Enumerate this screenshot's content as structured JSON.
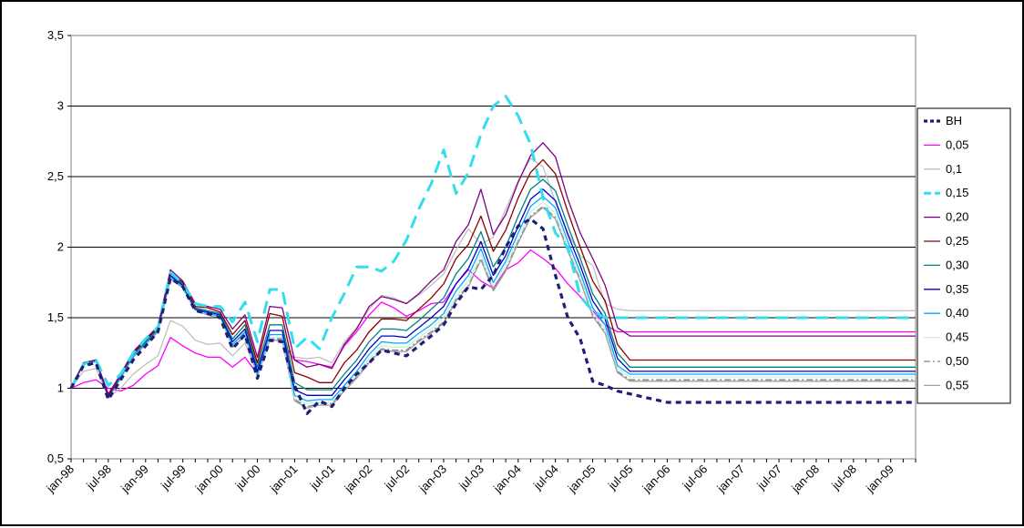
{
  "chart_data": {
    "type": "line",
    "title": "",
    "xlabel": "",
    "ylabel": "",
    "ylim": [
      0.5,
      3.5
    ],
    "yticks": [
      "0,5",
      "1",
      "1,5",
      "2",
      "2,5",
      "3",
      "3,5"
    ],
    "ytick_values": [
      0.5,
      1,
      1.5,
      2,
      2.5,
      3,
      3.5
    ],
    "grid": "horizontal",
    "legend_position": "right",
    "x_tick_labels": [
      "jan-98",
      "jul-98",
      "jan-99",
      "jul-99",
      "jan-00",
      "jul-00",
      "jan-01",
      "jul-01",
      "jan-02",
      "jul-02",
      "jan-03",
      "jul-03",
      "jan-04",
      "jul-04",
      "jan-05",
      "jul-05",
      "jan-06",
      "jul-06",
      "jan-07",
      "jul-07",
      "jan-08",
      "jul-08",
      "jan-09"
    ],
    "x": [
      "jan-98",
      "mar-98",
      "may-98",
      "jul-98",
      "sep-98",
      "nov-98",
      "jan-99",
      "mar-99",
      "may-99",
      "jul-99",
      "sep-99",
      "nov-99",
      "jan-00",
      "mar-00",
      "may-00",
      "jul-00",
      "sep-00",
      "nov-00",
      "jan-01",
      "mar-01",
      "may-01",
      "jul-01",
      "sep-01",
      "nov-01",
      "jan-02",
      "mar-02",
      "may-02",
      "jul-02",
      "sep-02",
      "nov-02",
      "jan-03",
      "mar-03",
      "may-03",
      "jul-03",
      "sep-03",
      "nov-03",
      "jan-04",
      "mar-04",
      "may-04",
      "jul-04",
      "sep-04",
      "nov-04",
      "jan-05",
      "mar-05",
      "may-05",
      "jul-05",
      "sep-05",
      "nov-05",
      "jan-06",
      "mar-06",
      "may-06",
      "jul-06",
      "sep-06",
      "nov-06",
      "jan-07",
      "mar-07",
      "may-07",
      "jul-07",
      "sep-07",
      "nov-07",
      "jan-08",
      "mar-08",
      "may-08",
      "jul-08",
      "sep-08",
      "nov-08",
      "jan-09",
      "mar-09",
      "may-09"
    ],
    "series": [
      {
        "name": "BH",
        "color": "#1f1f7a",
        "dash": "6,5",
        "width": 3.2,
        "values": [
          1.0,
          1.16,
          1.18,
          0.92,
          1.06,
          1.2,
          1.3,
          1.4,
          1.78,
          1.72,
          1.55,
          1.53,
          1.5,
          1.28,
          1.38,
          1.07,
          1.34,
          1.33,
          1.02,
          0.82,
          0.91,
          0.87,
          1.0,
          1.1,
          1.18,
          1.27,
          1.25,
          1.23,
          1.3,
          1.37,
          1.45,
          1.6,
          1.72,
          1.7,
          1.8,
          2.0,
          2.15,
          2.2,
          2.13,
          1.8,
          1.5,
          1.35,
          1.05,
          1.02,
          0.98,
          0.96,
          0.94,
          0.92,
          0.9,
          0.9,
          0.9,
          0.9,
          0.9,
          0.9,
          0.9,
          0.9,
          0.9,
          0.9,
          0.9,
          0.9,
          0.9,
          0.9,
          0.9,
          0.9,
          0.9,
          0.9,
          0.9,
          0.9,
          0.9
        ]
      },
      {
        "name": "0,05",
        "color": "#ff00ff",
        "dash": "",
        "width": 1.3,
        "values": [
          1.0,
          1.04,
          1.06,
          1.0,
          0.98,
          1.02,
          1.1,
          1.16,
          1.36,
          1.3,
          1.25,
          1.22,
          1.22,
          1.15,
          1.22,
          1.1,
          1.35,
          1.33,
          1.2,
          1.19,
          1.17,
          1.15,
          1.3,
          1.4,
          1.52,
          1.61,
          1.57,
          1.51,
          1.55,
          1.6,
          1.61,
          1.74,
          1.84,
          1.76,
          1.71,
          1.84,
          1.89,
          1.98,
          1.92,
          1.85,
          1.74,
          1.65,
          1.55,
          1.45,
          1.4,
          1.4,
          1.4,
          1.4,
          1.4,
          1.4,
          1.4,
          1.4,
          1.4,
          1.4,
          1.4,
          1.4,
          1.4,
          1.4,
          1.4,
          1.4,
          1.4,
          1.4,
          1.4,
          1.4,
          1.4,
          1.4,
          1.4,
          1.4,
          1.4
        ]
      },
      {
        "name": "0,1",
        "color": "#c0c0c0",
        "dash": "",
        "width": 1.3,
        "values": [
          1.0,
          1.12,
          1.14,
          0.94,
          1.0,
          1.1,
          1.17,
          1.23,
          1.48,
          1.44,
          1.34,
          1.31,
          1.32,
          1.23,
          1.32,
          1.11,
          1.36,
          1.36,
          1.22,
          1.21,
          1.22,
          1.18,
          1.33,
          1.43,
          1.56,
          1.66,
          1.64,
          1.6,
          1.66,
          1.73,
          1.81,
          1.98,
          2.13,
          2.02,
          2.07,
          2.27,
          2.47,
          2.63,
          2.57,
          2.32,
          2.1,
          1.94,
          1.87,
          1.6,
          1.56,
          1.55,
          1.55,
          1.55,
          1.55,
          1.55,
          1.55,
          1.55,
          1.55,
          1.55,
          1.55,
          1.55,
          1.55,
          1.55,
          1.55,
          1.55,
          1.55,
          1.55,
          1.55,
          1.55,
          1.55,
          1.55,
          1.55,
          1.55,
          1.55
        ]
      },
      {
        "name": "0,15",
        "color": "#33ddee",
        "dash": "14,8",
        "width": 3,
        "values": [
          1.0,
          1.17,
          1.2,
          1.02,
          1.1,
          1.25,
          1.35,
          1.43,
          1.82,
          1.74,
          1.6,
          1.58,
          1.58,
          1.47,
          1.61,
          1.33,
          1.7,
          1.7,
          1.28,
          1.36,
          1.28,
          1.5,
          1.67,
          1.86,
          1.86,
          1.83,
          1.9,
          2.05,
          2.27,
          2.45,
          2.69,
          2.38,
          2.53,
          2.8,
          3.0,
          3.07,
          2.93,
          2.73,
          2.35,
          2.1,
          2.0,
          1.65,
          1.55,
          1.5,
          1.5,
          1.5,
          1.5,
          1.5,
          1.5,
          1.5,
          1.5,
          1.5,
          1.5,
          1.5,
          1.5,
          1.5,
          1.5,
          1.5,
          1.5,
          1.5,
          1.5,
          1.5,
          1.5,
          1.5,
          1.5,
          1.5,
          1.5,
          1.5,
          1.5
        ]
      },
      {
        "name": "0,20",
        "color": "#800080",
        "dash": "",
        "width": 1.3,
        "values": [
          1.0,
          1.18,
          1.2,
          0.96,
          1.1,
          1.26,
          1.35,
          1.44,
          1.84,
          1.76,
          1.6,
          1.58,
          1.56,
          1.42,
          1.52,
          1.22,
          1.58,
          1.57,
          1.2,
          1.15,
          1.17,
          1.14,
          1.31,
          1.42,
          1.58,
          1.65,
          1.63,
          1.6,
          1.67,
          1.76,
          1.84,
          2.04,
          2.16,
          2.41,
          2.09,
          2.23,
          2.46,
          2.65,
          2.74,
          2.64,
          2.34,
          2.1,
          1.92,
          1.73,
          1.43,
          1.37,
          1.37,
          1.37,
          1.37,
          1.37,
          1.37,
          1.37,
          1.37,
          1.37,
          1.37,
          1.37,
          1.37,
          1.37,
          1.37,
          1.37,
          1.37,
          1.37,
          1.37,
          1.37,
          1.37,
          1.37,
          1.37,
          1.37,
          1.37
        ]
      },
      {
        "name": "0,25",
        "color": "#8b0000",
        "dash": "",
        "width": 1.3,
        "values": [
          1.0,
          1.18,
          1.2,
          0.95,
          1.1,
          1.25,
          1.34,
          1.43,
          1.82,
          1.75,
          1.58,
          1.57,
          1.54,
          1.38,
          1.48,
          1.18,
          1.53,
          1.51,
          1.11,
          1.08,
          1.04,
          1.04,
          1.18,
          1.27,
          1.4,
          1.49,
          1.49,
          1.48,
          1.56,
          1.64,
          1.74,
          1.92,
          2.02,
          2.22,
          1.97,
          2.12,
          2.35,
          2.53,
          2.62,
          2.52,
          2.25,
          2.0,
          1.76,
          1.62,
          1.31,
          1.2,
          1.2,
          1.2,
          1.2,
          1.2,
          1.2,
          1.2,
          1.2,
          1.2,
          1.2,
          1.2,
          1.2,
          1.2,
          1.2,
          1.2,
          1.2,
          1.2,
          1.2,
          1.2,
          1.2,
          1.2,
          1.2,
          1.2,
          1.2
        ]
      },
      {
        "name": "0,30",
        "color": "#008080",
        "dash": "",
        "width": 1.3,
        "values": [
          1.0,
          1.18,
          1.2,
          0.95,
          1.09,
          1.24,
          1.33,
          1.42,
          1.81,
          1.74,
          1.57,
          1.55,
          1.53,
          1.35,
          1.45,
          1.15,
          1.45,
          1.45,
          1.04,
          0.99,
          0.99,
          0.99,
          1.1,
          1.2,
          1.33,
          1.42,
          1.42,
          1.41,
          1.48,
          1.56,
          1.64,
          1.81,
          1.92,
          2.11,
          1.86,
          2.0,
          2.22,
          2.41,
          2.48,
          2.4,
          2.15,
          1.92,
          1.67,
          1.53,
          1.25,
          1.15,
          1.15,
          1.15,
          1.15,
          1.15,
          1.15,
          1.15,
          1.15,
          1.15,
          1.15,
          1.15,
          1.15,
          1.15,
          1.15,
          1.15,
          1.15,
          1.15,
          1.15,
          1.15,
          1.15,
          1.15,
          1.15,
          1.15,
          1.15
        ]
      },
      {
        "name": "0,35",
        "color": "#0000cc",
        "dash": "",
        "width": 1.3,
        "values": [
          1.0,
          1.18,
          1.2,
          0.94,
          1.09,
          1.24,
          1.33,
          1.42,
          1.8,
          1.73,
          1.56,
          1.54,
          1.52,
          1.33,
          1.42,
          1.12,
          1.41,
          1.41,
          0.99,
          0.95,
          0.95,
          0.95,
          1.06,
          1.16,
          1.28,
          1.37,
          1.37,
          1.36,
          1.43,
          1.5,
          1.58,
          1.74,
          1.85,
          2.04,
          1.8,
          1.94,
          2.15,
          2.34,
          2.41,
          2.33,
          2.09,
          1.87,
          1.62,
          1.49,
          1.21,
          1.12,
          1.12,
          1.12,
          1.12,
          1.12,
          1.12,
          1.12,
          1.12,
          1.12,
          1.12,
          1.12,
          1.12,
          1.12,
          1.12,
          1.12,
          1.12,
          1.12,
          1.12,
          1.12,
          1.12,
          1.12,
          1.12,
          1.12,
          1.12
        ]
      },
      {
        "name": "0,40",
        "color": "#00aaff",
        "dash": "",
        "width": 1.3,
        "values": [
          1.0,
          1.17,
          1.19,
          0.94,
          1.08,
          1.23,
          1.32,
          1.41,
          1.79,
          1.72,
          1.56,
          1.53,
          1.51,
          1.31,
          1.4,
          1.1,
          1.38,
          1.38,
          0.95,
          0.91,
          0.92,
          0.92,
          1.02,
          1.12,
          1.24,
          1.33,
          1.32,
          1.32,
          1.39,
          1.45,
          1.53,
          1.69,
          1.8,
          1.99,
          1.75,
          1.9,
          2.1,
          2.29,
          2.36,
          2.28,
          2.04,
          1.82,
          1.57,
          1.45,
          1.16,
          1.1,
          1.1,
          1.1,
          1.1,
          1.1,
          1.1,
          1.1,
          1.1,
          1.1,
          1.1,
          1.1,
          1.1,
          1.1,
          1.1,
          1.1,
          1.1,
          1.1,
          1.1,
          1.1,
          1.1,
          1.1,
          1.1,
          1.1,
          1.1
        ]
      },
      {
        "name": "0,45",
        "color": "#c8f0e0",
        "dash": "",
        "width": 1.3,
        "values": [
          1.0,
          1.17,
          1.19,
          0.94,
          1.08,
          1.23,
          1.32,
          1.41,
          1.79,
          1.72,
          1.55,
          1.53,
          1.5,
          1.3,
          1.39,
          1.09,
          1.36,
          1.36,
          0.93,
          0.89,
          0.9,
          0.9,
          1.0,
          1.1,
          1.21,
          1.3,
          1.29,
          1.29,
          1.36,
          1.42,
          1.5,
          1.65,
          1.76,
          1.95,
          1.72,
          1.87,
          2.06,
          2.25,
          2.32,
          2.24,
          2.0,
          1.79,
          1.54,
          1.42,
          1.14,
          1.08,
          1.08,
          1.08,
          1.08,
          1.08,
          1.08,
          1.08,
          1.08,
          1.08,
          1.08,
          1.08,
          1.08,
          1.08,
          1.08,
          1.08,
          1.08,
          1.08,
          1.08,
          1.08,
          1.08,
          1.08,
          1.08,
          1.08,
          1.08
        ]
      },
      {
        "name": "0,50",
        "color": "#808080",
        "dash": "7,3,2,3",
        "width": 1.3,
        "values": [
          1.0,
          1.17,
          1.19,
          0.93,
          1.07,
          1.22,
          1.31,
          1.4,
          1.78,
          1.71,
          1.55,
          1.52,
          1.5,
          1.3,
          1.38,
          1.08,
          1.35,
          1.35,
          0.92,
          0.87,
          0.89,
          0.89,
          0.99,
          1.08,
          1.19,
          1.28,
          1.27,
          1.27,
          1.34,
          1.4,
          1.47,
          1.63,
          1.73,
          1.92,
          1.7,
          1.84,
          2.04,
          2.22,
          2.29,
          2.21,
          1.98,
          1.77,
          1.52,
          1.4,
          1.12,
          1.06,
          1.06,
          1.06,
          1.06,
          1.06,
          1.06,
          1.06,
          1.06,
          1.06,
          1.06,
          1.06,
          1.06,
          1.06,
          1.06,
          1.06,
          1.06,
          1.06,
          1.06,
          1.06,
          1.06,
          1.06,
          1.06,
          1.06,
          1.06
        ]
      },
      {
        "name": "0,55",
        "color": "#a0a0a0",
        "dash": "",
        "width": 1.3,
        "values": [
          1.0,
          1.17,
          1.19,
          0.93,
          1.07,
          1.22,
          1.31,
          1.4,
          1.78,
          1.71,
          1.55,
          1.52,
          1.5,
          1.29,
          1.37,
          1.08,
          1.34,
          1.34,
          0.91,
          0.86,
          0.88,
          0.88,
          0.98,
          1.07,
          1.18,
          1.27,
          1.26,
          1.26,
          1.33,
          1.39,
          1.46,
          1.62,
          1.72,
          1.91,
          1.69,
          1.83,
          2.03,
          2.21,
          2.28,
          2.2,
          1.97,
          1.76,
          1.51,
          1.39,
          1.11,
          1.05,
          1.05,
          1.05,
          1.05,
          1.05,
          1.05,
          1.05,
          1.05,
          1.05,
          1.05,
          1.05,
          1.05,
          1.05,
          1.05,
          1.05,
          1.05,
          1.05,
          1.05,
          1.05,
          1.05,
          1.05,
          1.05,
          1.05,
          1.05
        ]
      }
    ]
  }
}
